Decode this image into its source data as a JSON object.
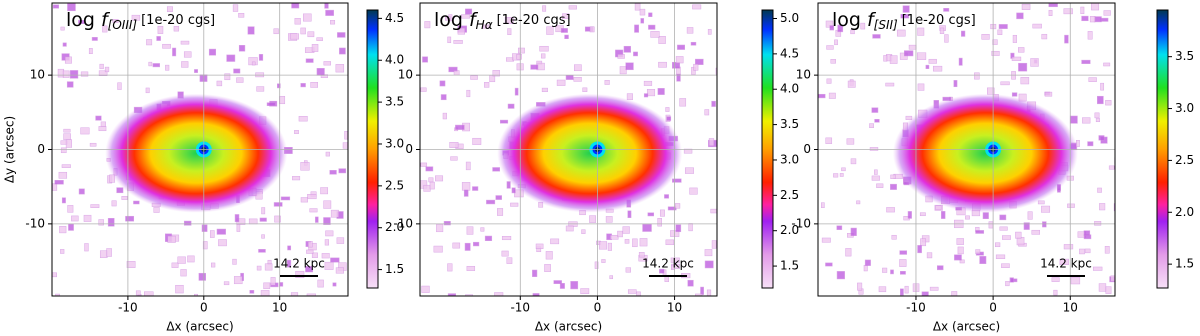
{
  "chart_data": [
    {
      "type": "image",
      "title": {
        "prefix": "log",
        "symbol": "f",
        "subscript": "[OIII]",
        "units": "[1e-20 cgs]"
      },
      "xlabel": "Δx (arcsec)",
      "ylabel": "Δy (arcsec)",
      "xlim": [
        -20,
        19
      ],
      "ylim": [
        -19.7,
        19.7
      ],
      "xticks": [
        -10,
        0,
        10
      ],
      "yticks": [
        -10,
        0,
        10
      ],
      "grid": true,
      "scalebar": "14.2 kpc",
      "colorbar": {
        "lim": [
          1.28,
          4.6
        ],
        "ticks": [
          1.5,
          {
            "value": 2,
            "label": "2.0"
          },
          2.5,
          {
            "value": 3,
            "label": "3.0"
          },
          3.5,
          {
            "value": 4,
            "label": "4.0"
          },
          4.5
        ]
      }
    },
    {
      "type": "image",
      "title": {
        "prefix": "log",
        "symbol": "f",
        "subscript": "Hα",
        "units": "[1e-20 cgs]"
      },
      "xlabel": "Δx (arcsec)",
      "xlim": [
        -23,
        15.5
      ],
      "ylim": [
        -19.7,
        19.7
      ],
      "xticks": [
        -10,
        0,
        10
      ],
      "yticks": [
        -10,
        0,
        10
      ],
      "grid": true,
      "scalebar": "14.2 kpc",
      "colorbar": {
        "lim": [
          1.19,
          5.12
        ],
        "ticks": [
          1.5,
          {
            "value": 2,
            "label": "2.0"
          },
          2.5,
          {
            "value": 3,
            "label": "3.0"
          },
          3.5,
          {
            "value": 4,
            "label": "4.0"
          },
          4.5,
          {
            "value": 5,
            "label": "5.0"
          }
        ]
      }
    },
    {
      "type": "image",
      "title": {
        "prefix": "log",
        "symbol": "f",
        "subscript": "[SII]",
        "units": "[1e-20 cgs]"
      },
      "xlabel": "Δx (arcsec)",
      "xlim": [
        -22.7,
        15.8
      ],
      "ylim": [
        -19.7,
        19.7
      ],
      "xticks": [
        -10,
        0,
        10
      ],
      "yticks": [
        -10,
        0,
        10
      ],
      "grid": true,
      "scalebar": "14.2 kpc",
      "colorbar": {
        "lim": [
          1.27,
          3.95
        ],
        "ticks": [
          1.5,
          {
            "value": 2,
            "label": "2.0"
          },
          2.5,
          {
            "value": 3,
            "label": "3.0"
          },
          3.5
        ]
      }
    }
  ]
}
